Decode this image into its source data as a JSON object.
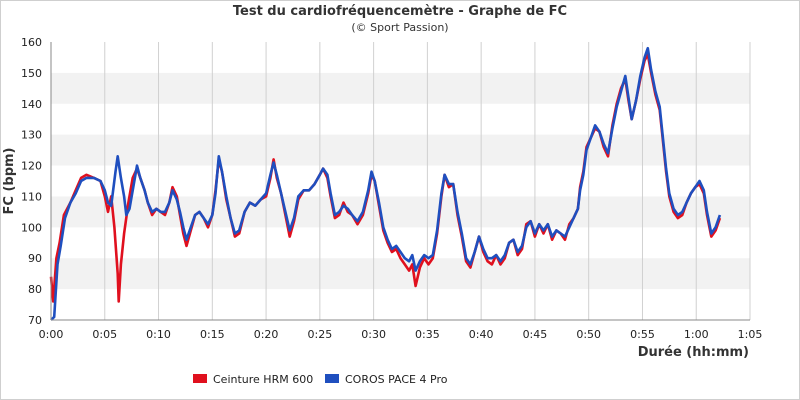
{
  "chart_data": {
    "type": "line",
    "title": "Test du cardiofréquencemètre - Graphe de FC",
    "subtitle": "(© Sport Passion)",
    "xlabel": "Durée (hh:mm)",
    "ylabel": "FC (bpm)",
    "xlim": [
      0,
      65
    ],
    "ylim": [
      70,
      160
    ],
    "x_tick_values": [
      0,
      5,
      10,
      15,
      20,
      25,
      30,
      35,
      40,
      45,
      50,
      55,
      60,
      65
    ],
    "x_tick_labels": [
      "0:00",
      "0:05",
      "0:10",
      "0:15",
      "0:20",
      "0:25",
      "0:30",
      "0:35",
      "0:40",
      "0:45",
      "0:50",
      "0:55",
      "1:00",
      "1:05"
    ],
    "y_ticks": [
      70,
      80,
      90,
      100,
      110,
      120,
      130,
      140,
      150,
      160
    ],
    "grid": "bands",
    "legend_position": "bottom",
    "series": [
      {
        "name": "Ceinture HRM 600",
        "color": "#e0101e",
        "points": [
          [
            0,
            84
          ],
          [
            0.2,
            76
          ],
          [
            0.5,
            90
          ],
          [
            0.8,
            95
          ],
          [
            1.2,
            104
          ],
          [
            1.8,
            108
          ],
          [
            2.3,
            112
          ],
          [
            2.8,
            116
          ],
          [
            3.3,
            117
          ],
          [
            4,
            116
          ],
          [
            4.6,
            115
          ],
          [
            5,
            110
          ],
          [
            5.3,
            105
          ],
          [
            5.6,
            110
          ],
          [
            5.9,
            100
          ],
          [
            6,
            95
          ],
          [
            6.2,
            85
          ],
          [
            6.3,
            76
          ],
          [
            6.5,
            88
          ],
          [
            6.8,
            98
          ],
          [
            7.2,
            108
          ],
          [
            7.6,
            116
          ],
          [
            8,
            119
          ],
          [
            8.3,
            116
          ],
          [
            8.7,
            112
          ],
          [
            9,
            108
          ],
          [
            9.4,
            104
          ],
          [
            9.8,
            106
          ],
          [
            10.2,
            105
          ],
          [
            10.6,
            104
          ],
          [
            11,
            108
          ],
          [
            11.3,
            113
          ],
          [
            11.7,
            110
          ],
          [
            12,
            104
          ],
          [
            12.3,
            98
          ],
          [
            12.6,
            94
          ],
          [
            13,
            99
          ],
          [
            13.4,
            104
          ],
          [
            13.8,
            105
          ],
          [
            14.2,
            103
          ],
          [
            14.6,
            100
          ],
          [
            15,
            104
          ],
          [
            15.3,
            112
          ],
          [
            15.6,
            122
          ],
          [
            15.9,
            118
          ],
          [
            16.3,
            109
          ],
          [
            16.7,
            103
          ],
          [
            17.1,
            97
          ],
          [
            17.5,
            98
          ],
          [
            18,
            105
          ],
          [
            18.5,
            108
          ],
          [
            19,
            107
          ],
          [
            19.5,
            109
          ],
          [
            20,
            110
          ],
          [
            20.4,
            116
          ],
          [
            20.7,
            122
          ],
          [
            21,
            116
          ],
          [
            21.4,
            111
          ],
          [
            21.8,
            104
          ],
          [
            22.2,
            97
          ],
          [
            22.6,
            102
          ],
          [
            23,
            109
          ],
          [
            23.5,
            112
          ],
          [
            24,
            112
          ],
          [
            24.5,
            114
          ],
          [
            25,
            117
          ],
          [
            25.3,
            119
          ],
          [
            25.7,
            116
          ],
          [
            26,
            110
          ],
          [
            26.4,
            103
          ],
          [
            26.8,
            104
          ],
          [
            27.2,
            108
          ],
          [
            27.6,
            105
          ],
          [
            28,
            104
          ],
          [
            28.5,
            101
          ],
          [
            29,
            104
          ],
          [
            29.5,
            111
          ],
          [
            29.8,
            117
          ],
          [
            30.1,
            115
          ],
          [
            30.5,
            107
          ],
          [
            30.9,
            99
          ],
          [
            31.3,
            95
          ],
          [
            31.7,
            92
          ],
          [
            32.1,
            93
          ],
          [
            32.5,
            90
          ],
          [
            32.9,
            88
          ],
          [
            33.3,
            86
          ],
          [
            33.6,
            88
          ],
          [
            33.9,
            81
          ],
          [
            34.3,
            87
          ],
          [
            34.7,
            90
          ],
          [
            35.1,
            88
          ],
          [
            35.5,
            90
          ],
          [
            35.9,
            98
          ],
          [
            36.3,
            110
          ],
          [
            36.6,
            117
          ],
          [
            37,
            113
          ],
          [
            37.4,
            114
          ],
          [
            37.8,
            104
          ],
          [
            38.2,
            97
          ],
          [
            38.6,
            89
          ],
          [
            39,
            87
          ],
          [
            39.4,
            92
          ],
          [
            39.8,
            97
          ],
          [
            40.2,
            92
          ],
          [
            40.6,
            89
          ],
          [
            41,
            88
          ],
          [
            41.4,
            91
          ],
          [
            41.8,
            88
          ],
          [
            42.2,
            90
          ],
          [
            42.6,
            95
          ],
          [
            43,
            96
          ],
          [
            43.4,
            91
          ],
          [
            43.8,
            93
          ],
          [
            44.2,
            101
          ],
          [
            44.6,
            102
          ],
          [
            45,
            97
          ],
          [
            45.4,
            101
          ],
          [
            45.8,
            98
          ],
          [
            46.2,
            101
          ],
          [
            46.6,
            96
          ],
          [
            47,
            99
          ],
          [
            47.4,
            98
          ],
          [
            47.8,
            96
          ],
          [
            48.2,
            101
          ],
          [
            48.6,
            103
          ],
          [
            49,
            106
          ],
          [
            49.2,
            113
          ],
          [
            49.5,
            118
          ],
          [
            49.8,
            126
          ],
          [
            50.2,
            129
          ],
          [
            50.6,
            132
          ],
          [
            51,
            131
          ],
          [
            51.4,
            126
          ],
          [
            51.8,
            123
          ],
          [
            52.2,
            133
          ],
          [
            52.6,
            140
          ],
          [
            53,
            145
          ],
          [
            53.4,
            148
          ],
          [
            53.7,
            141
          ],
          [
            54,
            135
          ],
          [
            54.4,
            141
          ],
          [
            54.8,
            148
          ],
          [
            55.2,
            154
          ],
          [
            55.5,
            156
          ],
          [
            55.8,
            150
          ],
          [
            56.2,
            143
          ],
          [
            56.6,
            138
          ],
          [
            56.9,
            128
          ],
          [
            57.2,
            118
          ],
          [
            57.5,
            110
          ],
          [
            57.9,
            105
          ],
          [
            58.3,
            103
          ],
          [
            58.7,
            104
          ],
          [
            59.1,
            108
          ],
          [
            59.5,
            111
          ],
          [
            59.9,
            113
          ],
          [
            60.3,
            114
          ],
          [
            60.7,
            111
          ],
          [
            61,
            104
          ],
          [
            61.4,
            97
          ],
          [
            61.8,
            99
          ],
          [
            62.2,
            103
          ]
        ]
      },
      {
        "name": "COROS PACE 4 Pro",
        "color": "#1f4fbf",
        "points": [
          [
            0,
            70
          ],
          [
            0.3,
            71
          ],
          [
            0.6,
            88
          ],
          [
            0.9,
            94
          ],
          [
            1.3,
            103
          ],
          [
            1.8,
            108
          ],
          [
            2.3,
            111
          ],
          [
            2.8,
            115
          ],
          [
            3.3,
            116
          ],
          [
            4,
            116
          ],
          [
            4.6,
            115
          ],
          [
            5,
            112
          ],
          [
            5.3,
            108
          ],
          [
            5.6,
            107
          ],
          [
            6,
            118
          ],
          [
            6.2,
            123
          ],
          [
            6.5,
            116
          ],
          [
            6.8,
            110
          ],
          [
            7,
            104
          ],
          [
            7.3,
            106
          ],
          [
            7.7,
            114
          ],
          [
            8,
            120
          ],
          [
            8.3,
            116
          ],
          [
            8.7,
            112
          ],
          [
            9,
            108
          ],
          [
            9.4,
            105
          ],
          [
            9.8,
            106
          ],
          [
            10.2,
            105
          ],
          [
            10.6,
            105
          ],
          [
            11,
            108
          ],
          [
            11.3,
            112
          ],
          [
            11.7,
            109
          ],
          [
            12,
            105
          ],
          [
            12.3,
            100
          ],
          [
            12.6,
            96
          ],
          [
            13,
            100
          ],
          [
            13.4,
            104
          ],
          [
            13.8,
            105
          ],
          [
            14.2,
            103
          ],
          [
            14.6,
            101
          ],
          [
            15,
            104
          ],
          [
            15.3,
            111
          ],
          [
            15.6,
            123
          ],
          [
            15.9,
            118
          ],
          [
            16.3,
            110
          ],
          [
            16.7,
            103
          ],
          [
            17.1,
            98
          ],
          [
            17.5,
            99
          ],
          [
            18,
            105
          ],
          [
            18.5,
            108
          ],
          [
            19,
            107
          ],
          [
            19.5,
            109
          ],
          [
            20,
            111
          ],
          [
            20.4,
            117
          ],
          [
            20.7,
            121
          ],
          [
            21,
            117
          ],
          [
            21.4,
            111
          ],
          [
            21.8,
            105
          ],
          [
            22.2,
            99
          ],
          [
            22.6,
            103
          ],
          [
            23,
            110
          ],
          [
            23.5,
            112
          ],
          [
            24,
            112
          ],
          [
            24.5,
            114
          ],
          [
            25,
            117
          ],
          [
            25.3,
            119
          ],
          [
            25.7,
            117
          ],
          [
            26,
            111
          ],
          [
            26.4,
            104
          ],
          [
            26.8,
            105
          ],
          [
            27.2,
            107
          ],
          [
            27.6,
            106
          ],
          [
            28,
            104
          ],
          [
            28.5,
            102
          ],
          [
            29,
            105
          ],
          [
            29.5,
            112
          ],
          [
            29.8,
            118
          ],
          [
            30.1,
            115
          ],
          [
            30.5,
            108
          ],
          [
            30.9,
            100
          ],
          [
            31.3,
            96
          ],
          [
            31.7,
            93
          ],
          [
            32.1,
            94
          ],
          [
            32.5,
            92
          ],
          [
            32.9,
            90
          ],
          [
            33.3,
            89
          ],
          [
            33.6,
            91
          ],
          [
            33.9,
            86
          ],
          [
            34.3,
            89
          ],
          [
            34.7,
            91
          ],
          [
            35.1,
            90
          ],
          [
            35.5,
            91
          ],
          [
            35.9,
            99
          ],
          [
            36.3,
            111
          ],
          [
            36.6,
            117
          ],
          [
            37,
            114
          ],
          [
            37.4,
            114
          ],
          [
            37.8,
            105
          ],
          [
            38.2,
            98
          ],
          [
            38.6,
            90
          ],
          [
            39,
            88
          ],
          [
            39.4,
            92
          ],
          [
            39.8,
            97
          ],
          [
            40.2,
            93
          ],
          [
            40.6,
            90
          ],
          [
            41,
            90
          ],
          [
            41.4,
            91
          ],
          [
            41.8,
            89
          ],
          [
            42.2,
            91
          ],
          [
            42.6,
            95
          ],
          [
            43,
            96
          ],
          [
            43.4,
            92
          ],
          [
            43.8,
            94
          ],
          [
            44.2,
            100
          ],
          [
            44.6,
            102
          ],
          [
            45,
            98
          ],
          [
            45.4,
            101
          ],
          [
            45.8,
            99
          ],
          [
            46.2,
            101
          ],
          [
            46.6,
            97
          ],
          [
            47,
            99
          ],
          [
            47.4,
            98
          ],
          [
            47.8,
            97
          ],
          [
            48.2,
            100
          ],
          [
            48.6,
            103
          ],
          [
            49,
            106
          ],
          [
            49.2,
            112
          ],
          [
            49.5,
            117
          ],
          [
            49.8,
            125
          ],
          [
            50.2,
            129
          ],
          [
            50.6,
            133
          ],
          [
            51,
            131
          ],
          [
            51.4,
            127
          ],
          [
            51.8,
            124
          ],
          [
            52.2,
            132
          ],
          [
            52.6,
            139
          ],
          [
            53,
            144
          ],
          [
            53.4,
            149
          ],
          [
            53.7,
            142
          ],
          [
            54,
            135
          ],
          [
            54.4,
            141
          ],
          [
            54.8,
            149
          ],
          [
            55.2,
            155
          ],
          [
            55.5,
            158
          ],
          [
            55.8,
            151
          ],
          [
            56.2,
            144
          ],
          [
            56.6,
            139
          ],
          [
            56.9,
            129
          ],
          [
            57.2,
            119
          ],
          [
            57.5,
            111
          ],
          [
            57.9,
            106
          ],
          [
            58.3,
            104
          ],
          [
            58.7,
            105
          ],
          [
            59.1,
            108
          ],
          [
            59.5,
            111
          ],
          [
            59.9,
            113
          ],
          [
            60.3,
            115
          ],
          [
            60.7,
            112
          ],
          [
            61,
            105
          ],
          [
            61.4,
            98
          ],
          [
            61.8,
            100
          ],
          [
            62.2,
            104
          ]
        ]
      }
    ]
  }
}
